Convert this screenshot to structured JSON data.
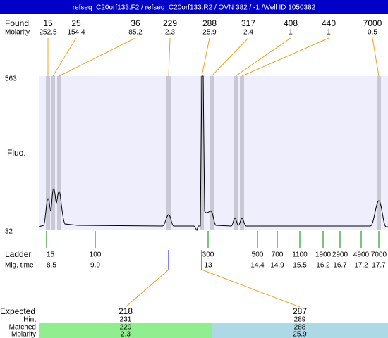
{
  "header": {
    "title": "refseq_C20orf133.F2 / refseq_C20orf133.R2 / OVN 382 / -1 /Well ID 1050382"
  },
  "found": {
    "label": "Found",
    "values": [
      15,
      25,
      36,
      229,
      288,
      317,
      408,
      440,
      7000
    ]
  },
  "molarity": {
    "label": "Molarity",
    "values": [
      252.5,
      154.4,
      85.2,
      2.3,
      25.9,
      2.4,
      1,
      1,
      0.5
    ]
  },
  "axis": {
    "label": "Fluo.",
    "max": 563,
    "min": 32
  },
  "ladder": {
    "label": "Ladder",
    "sizes": [
      15,
      100,
      300,
      500,
      700,
      1100,
      1900,
      2900,
      4900,
      7000
    ]
  },
  "mig_time": {
    "label": "Mig. time",
    "values": [
      8.5,
      9.9,
      13,
      14.4,
      14.9,
      15.5,
      16.2,
      16.7,
      17.2,
      17.7
    ]
  },
  "expected": {
    "label": "Expected",
    "values": [
      218,
      287
    ]
  },
  "hint": {
    "label": "Hint",
    "values": [
      231,
      289
    ]
  },
  "matched": {
    "label": "Matched",
    "values": [
      229,
      288
    ]
  },
  "matched_molarity": {
    "label": "Molarity",
    "values": [
      2.3,
      25.9
    ]
  }
}
